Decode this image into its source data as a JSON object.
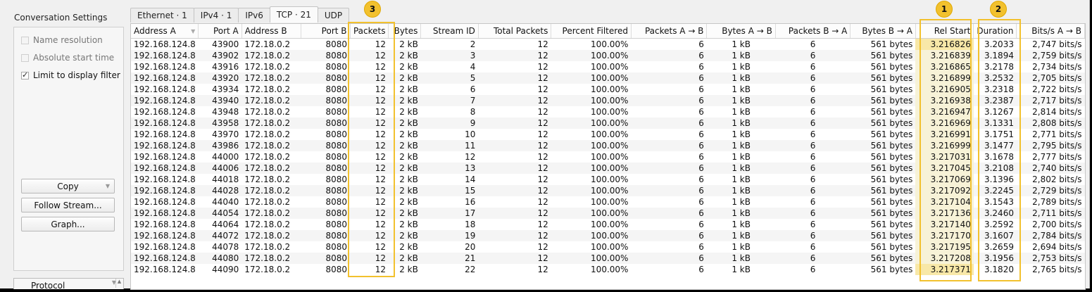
{
  "left_panel": {
    "title": "Conversation Settings",
    "checkboxes": [
      {
        "label": "Name resolution",
        "checked": false,
        "enabled": false
      },
      {
        "label": "Absolute start time",
        "checked": false,
        "enabled": false
      },
      {
        "label": "Limit to display filter",
        "checked": true,
        "enabled": true
      }
    ],
    "buttons": {
      "copy": "Copy",
      "follow_stream": "Follow Stream...",
      "graph": "Graph..."
    },
    "protocol_header": "Protocol"
  },
  "tabs": [
    {
      "label": "Ethernet · 1",
      "active": false
    },
    {
      "label": "IPv4 · 1",
      "active": false
    },
    {
      "label": "IPv6",
      "active": false
    },
    {
      "label": "TCP · 21",
      "active": true
    },
    {
      "label": "UDP",
      "active": false
    }
  ],
  "table": {
    "columns": [
      "Address A",
      "Port A",
      "Address B",
      "Port B",
      "Packets",
      "Bytes",
      "Stream ID",
      "Total Packets",
      "Percent Filtered",
      "Packets A → B",
      "Bytes A → B",
      "Packets B → A",
      "Bytes B → A",
      "Rel Start",
      "Duration",
      "Bits/s A → B"
    ],
    "rows": [
      [
        "192.168.124.8",
        "43900",
        "172.18.0.2",
        "8080",
        "12",
        "2 kB",
        "2",
        "12",
        "100.00%",
        "6",
        "1 kB",
        "6",
        "561 bytes",
        "3.216826",
        "3.2033",
        "2,747 bits/s"
      ],
      [
        "192.168.124.8",
        "43902",
        "172.18.0.2",
        "8080",
        "12",
        "2 kB",
        "3",
        "12",
        "100.00%",
        "6",
        "1 kB",
        "6",
        "561 bytes",
        "3.216839",
        "3.1894",
        "2,759 bits/s"
      ],
      [
        "192.168.124.8",
        "43916",
        "172.18.0.2",
        "8080",
        "12",
        "2 kB",
        "4",
        "12",
        "100.00%",
        "6",
        "1 kB",
        "6",
        "561 bytes",
        "3.216865",
        "3.2178",
        "2,734 bits/s"
      ],
      [
        "192.168.124.8",
        "43920",
        "172.18.0.2",
        "8080",
        "12",
        "2 kB",
        "5",
        "12",
        "100.00%",
        "6",
        "1 kB",
        "6",
        "561 bytes",
        "3.216899",
        "3.2532",
        "2,705 bits/s"
      ],
      [
        "192.168.124.8",
        "43934",
        "172.18.0.2",
        "8080",
        "12",
        "2 kB",
        "6",
        "12",
        "100.00%",
        "6",
        "1 kB",
        "6",
        "561 bytes",
        "3.216905",
        "3.2318",
        "2,722 bits/s"
      ],
      [
        "192.168.124.8",
        "43940",
        "172.18.0.2",
        "8080",
        "12",
        "2 kB",
        "7",
        "12",
        "100.00%",
        "6",
        "1 kB",
        "6",
        "561 bytes",
        "3.216938",
        "3.2387",
        "2,717 bits/s"
      ],
      [
        "192.168.124.8",
        "43948",
        "172.18.0.2",
        "8080",
        "12",
        "2 kB",
        "8",
        "12",
        "100.00%",
        "6",
        "1 kB",
        "6",
        "561 bytes",
        "3.216947",
        "3.1267",
        "2,814 bits/s"
      ],
      [
        "192.168.124.8",
        "43958",
        "172.18.0.2",
        "8080",
        "12",
        "2 kB",
        "9",
        "12",
        "100.00%",
        "6",
        "1 kB",
        "6",
        "561 bytes",
        "3.216969",
        "3.1331",
        "2,808 bits/s"
      ],
      [
        "192.168.124.8",
        "43970",
        "172.18.0.2",
        "8080",
        "12",
        "2 kB",
        "10",
        "12",
        "100.00%",
        "6",
        "1 kB",
        "6",
        "561 bytes",
        "3.216991",
        "3.1751",
        "2,771 bits/s"
      ],
      [
        "192.168.124.8",
        "43986",
        "172.18.0.2",
        "8080",
        "12",
        "2 kB",
        "11",
        "12",
        "100.00%",
        "6",
        "1 kB",
        "6",
        "561 bytes",
        "3.216999",
        "3.1477",
        "2,795 bits/s"
      ],
      [
        "192.168.124.8",
        "44000",
        "172.18.0.2",
        "8080",
        "12",
        "2 kB",
        "12",
        "12",
        "100.00%",
        "6",
        "1 kB",
        "6",
        "561 bytes",
        "3.217031",
        "3.1678",
        "2,777 bits/s"
      ],
      [
        "192.168.124.8",
        "44006",
        "172.18.0.2",
        "8080",
        "12",
        "2 kB",
        "13",
        "12",
        "100.00%",
        "6",
        "1 kB",
        "6",
        "561 bytes",
        "3.217045",
        "3.2108",
        "2,740 bits/s"
      ],
      [
        "192.168.124.8",
        "44018",
        "172.18.0.2",
        "8080",
        "12",
        "2 kB",
        "14",
        "12",
        "100.00%",
        "6",
        "1 kB",
        "6",
        "561 bytes",
        "3.217069",
        "3.1396",
        "2,802 bits/s"
      ],
      [
        "192.168.124.8",
        "44028",
        "172.18.0.2",
        "8080",
        "12",
        "2 kB",
        "15",
        "12",
        "100.00%",
        "6",
        "1 kB",
        "6",
        "561 bytes",
        "3.217092",
        "3.2245",
        "2,729 bits/s"
      ],
      [
        "192.168.124.8",
        "44040",
        "172.18.0.2",
        "8080",
        "12",
        "2 kB",
        "16",
        "12",
        "100.00%",
        "6",
        "1 kB",
        "6",
        "561 bytes",
        "3.217104",
        "3.1543",
        "2,789 bits/s"
      ],
      [
        "192.168.124.8",
        "44054",
        "172.18.0.2",
        "8080",
        "12",
        "2 kB",
        "17",
        "12",
        "100.00%",
        "6",
        "1 kB",
        "6",
        "561 bytes",
        "3.217136",
        "3.2460",
        "2,711 bits/s"
      ],
      [
        "192.168.124.8",
        "44064",
        "172.18.0.2",
        "8080",
        "12",
        "2 kB",
        "18",
        "12",
        "100.00%",
        "6",
        "1 kB",
        "6",
        "561 bytes",
        "3.217140",
        "3.2592",
        "2,700 bits/s"
      ],
      [
        "192.168.124.8",
        "44072",
        "172.18.0.2",
        "8080",
        "12",
        "2 kB",
        "19",
        "12",
        "100.00%",
        "6",
        "1 kB",
        "6",
        "561 bytes",
        "3.217170",
        "3.1607",
        "2,784 bits/s"
      ],
      [
        "192.168.124.8",
        "44078",
        "172.18.0.2",
        "8080",
        "12",
        "2 kB",
        "20",
        "12",
        "100.00%",
        "6",
        "1 kB",
        "6",
        "561 bytes",
        "3.217195",
        "3.2659",
        "2,694 bits/s"
      ],
      [
        "192.168.124.8",
        "44080",
        "172.18.0.2",
        "8080",
        "12",
        "2 kB",
        "21",
        "12",
        "100.00%",
        "6",
        "1 kB",
        "6",
        "561 bytes",
        "3.217208",
        "3.1956",
        "2,753 bits/s"
      ],
      [
        "192.168.124.8",
        "44090",
        "172.18.0.2",
        "8080",
        "12",
        "2 kB",
        "22",
        "12",
        "100.00%",
        "6",
        "1 kB",
        "6",
        "561 bytes",
        "3.217371",
        "3.1820",
        "2,765 bits/s"
      ]
    ]
  },
  "annotations": [
    {
      "number": "1",
      "target": "Rel Start"
    },
    {
      "number": "2",
      "target": "Duration"
    },
    {
      "number": "3",
      "target": "Packets"
    }
  ],
  "colors": {
    "annotation": "#f2c12e",
    "bar_fill": "#f7f2d7",
    "highlight": "#f8e8a8"
  }
}
